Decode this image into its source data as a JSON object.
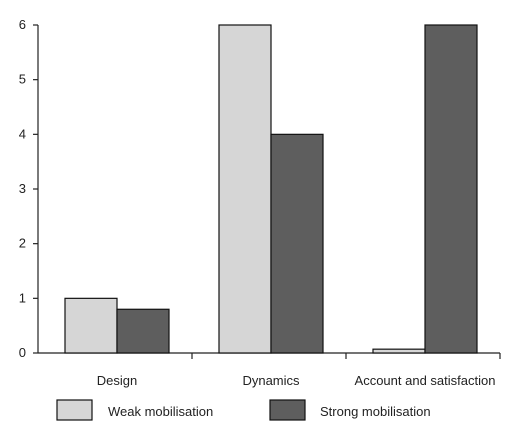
{
  "chart_data": {
    "type": "bar",
    "categories": [
      "Design",
      "Dynamics",
      "Account and satisfaction"
    ],
    "series": [
      {
        "name": "Weak mobilisation",
        "values": [
          1.0,
          6.0,
          0.07
        ]
      },
      {
        "name": "Strong mobilisation",
        "values": [
          0.8,
          4.0,
          6.0
        ]
      }
    ],
    "ylim": [
      0,
      6
    ],
    "yticks": [
      "0",
      "1",
      "2",
      "3",
      "4",
      "5",
      "6"
    ],
    "grid": false,
    "legend_position": "bottom",
    "colors": {
      "Weak mobilisation": "#d6d6d6",
      "Strong mobilisation": "#5e5e5e"
    }
  }
}
